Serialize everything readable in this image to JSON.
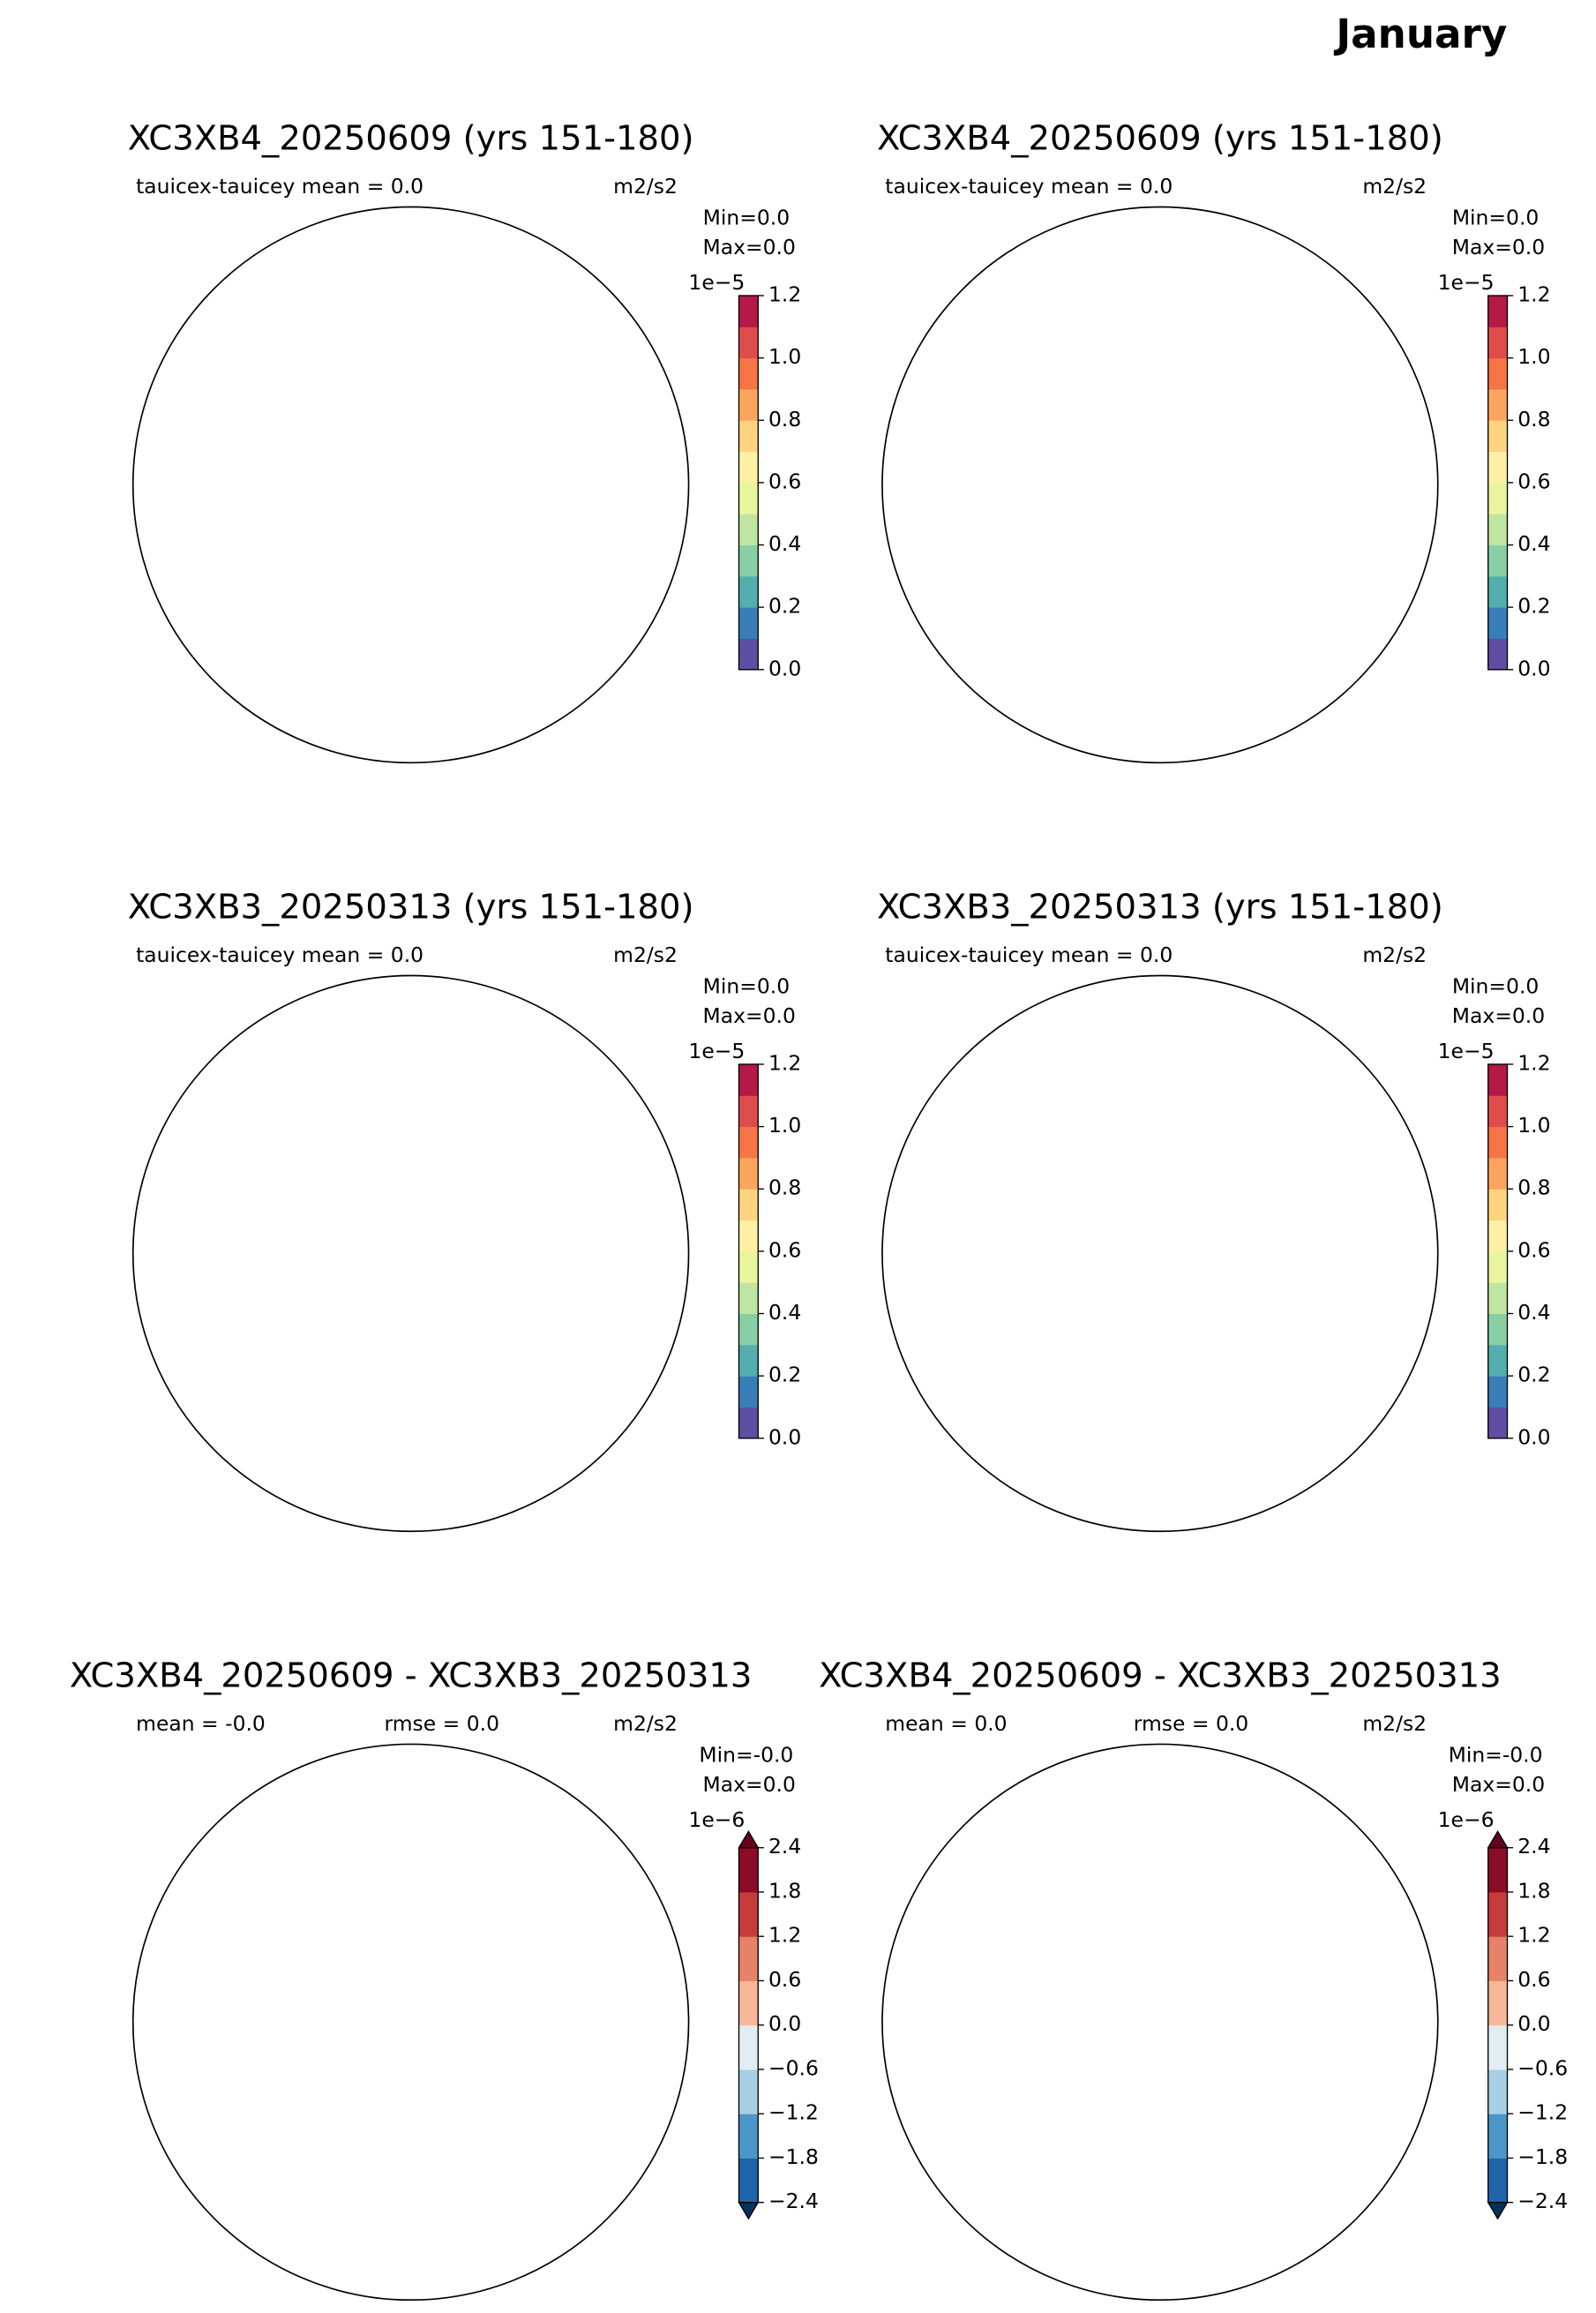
{
  "suptitle": "January",
  "panels": [
    {
      "title": "XC3XB4_20250609 (yrs 151-180)",
      "stats": [
        "tauicex-tauicey  mean = 0.0"
      ],
      "units": "m2/s2",
      "min": "Min=0.0",
      "max": "Max=0.0",
      "colorbar": {
        "exponent": "1e−5",
        "lim": [
          0,
          1.2
        ],
        "ticks": [
          {
            "value": 0,
            "label": "0.0"
          },
          0.2,
          0.4,
          0.6,
          0.8,
          {
            "value": 1,
            "label": "1.0"
          },
          1.2
        ],
        "colors": [
          "#5e4fa2",
          "#3a7eb8",
          "#54aead",
          "#89cfa5",
          "#bfe5a0",
          "#eaf69e",
          "#fff0a6",
          "#fed481",
          "#fca55d",
          "#f57547",
          "#de4d4b",
          "#b41947"
        ],
        "extend": false
      }
    },
    {
      "title": "XC3XB4_20250609 (yrs 151-180)",
      "stats": [
        "tauicex-tauicey  mean = 0.0"
      ],
      "units": "m2/s2",
      "min": "Min=0.0",
      "max": "Max=0.0",
      "colorbar": {
        "exponent": "1e−5",
        "lim": [
          0,
          1.2
        ],
        "ticks": [
          {
            "value": 0,
            "label": "0.0"
          },
          0.2,
          0.4,
          0.6,
          0.8,
          {
            "value": 1,
            "label": "1.0"
          },
          1.2
        ],
        "colors": [
          "#5e4fa2",
          "#3a7eb8",
          "#54aead",
          "#89cfa5",
          "#bfe5a0",
          "#eaf69e",
          "#fff0a6",
          "#fed481",
          "#fca55d",
          "#f57547",
          "#de4d4b",
          "#b41947"
        ],
        "extend": false
      }
    },
    {
      "title": "XC3XB3_20250313 (yrs 151-180)",
      "stats": [
        "tauicex-tauicey  mean = 0.0"
      ],
      "units": "m2/s2",
      "min": "Min=0.0",
      "max": "Max=0.0",
      "colorbar": {
        "exponent": "1e−5",
        "lim": [
          0,
          1.2
        ],
        "ticks": [
          {
            "value": 0,
            "label": "0.0"
          },
          0.2,
          0.4,
          0.6,
          0.8,
          {
            "value": 1,
            "label": "1.0"
          },
          1.2
        ],
        "colors": [
          "#5e4fa2",
          "#3a7eb8",
          "#54aead",
          "#89cfa5",
          "#bfe5a0",
          "#eaf69e",
          "#fff0a6",
          "#fed481",
          "#fca55d",
          "#f57547",
          "#de4d4b",
          "#b41947"
        ],
        "extend": false
      }
    },
    {
      "title": "XC3XB3_20250313 (yrs 151-180)",
      "stats": [
        "tauicex-tauicey  mean = 0.0"
      ],
      "units": "m2/s2",
      "min": "Min=0.0",
      "max": "Max=0.0",
      "colorbar": {
        "exponent": "1e−5",
        "lim": [
          0,
          1.2
        ],
        "ticks": [
          {
            "value": 0,
            "label": "0.0"
          },
          0.2,
          0.4,
          0.6,
          0.8,
          {
            "value": 1,
            "label": "1.0"
          },
          1.2
        ],
        "colors": [
          "#5e4fa2",
          "#3a7eb8",
          "#54aead",
          "#89cfa5",
          "#bfe5a0",
          "#eaf69e",
          "#fff0a6",
          "#fed481",
          "#fca55d",
          "#f57547",
          "#de4d4b",
          "#b41947"
        ],
        "extend": false
      }
    },
    {
      "title": "XC3XB4_20250609 - XC3XB3_20250313",
      "stats": [
        "mean = -0.0",
        "rmse = 0.0"
      ],
      "units": "m2/s2",
      "min": "Min=-0.0",
      "max": "Max=0.0",
      "colorbar": {
        "exponent": "1e−6",
        "lim": [
          -2.4,
          2.4
        ],
        "ticks": [
          {
            "value": -2.4,
            "label": "−2.4"
          },
          {
            "value": -1.8,
            "label": "−1.8"
          },
          {
            "value": -1.2,
            "label": "−1.2"
          },
          {
            "value": -0.6,
            "label": "−0.6"
          },
          {
            "value": 0,
            "label": "0.0"
          },
          0.6,
          1.2,
          1.8,
          2.4
        ],
        "colors": [
          "#1f63a8",
          "#4b98c8",
          "#a7d0e4",
          "#e1edf3",
          "#f7b799",
          "#e58267",
          "#c43c3c",
          "#8b0c26"
        ],
        "extend": true,
        "under": "#053061",
        "over": "#67001f"
      }
    },
    {
      "title": "XC3XB4_20250609 - XC3XB3_20250313",
      "stats": [
        "mean = 0.0",
        "rmse = 0.0"
      ],
      "units": "m2/s2",
      "min": "Min=-0.0",
      "max": "Max=0.0",
      "colorbar": {
        "exponent": "1e−6",
        "lim": [
          -2.4,
          2.4
        ],
        "ticks": [
          {
            "value": -2.4,
            "label": "−2.4"
          },
          {
            "value": -1.8,
            "label": "−1.8"
          },
          {
            "value": -1.2,
            "label": "−1.2"
          },
          {
            "value": -0.6,
            "label": "−0.6"
          },
          {
            "value": 0,
            "label": "0.0"
          },
          0.6,
          1.2,
          1.8,
          2.4
        ],
        "colors": [
          "#1f63a8",
          "#4b98c8",
          "#a7d0e4",
          "#e1edf3",
          "#f7b799",
          "#e58267",
          "#c43c3c",
          "#8b0c26"
        ],
        "extend": true,
        "under": "#053061",
        "over": "#67001f"
      }
    }
  ]
}
